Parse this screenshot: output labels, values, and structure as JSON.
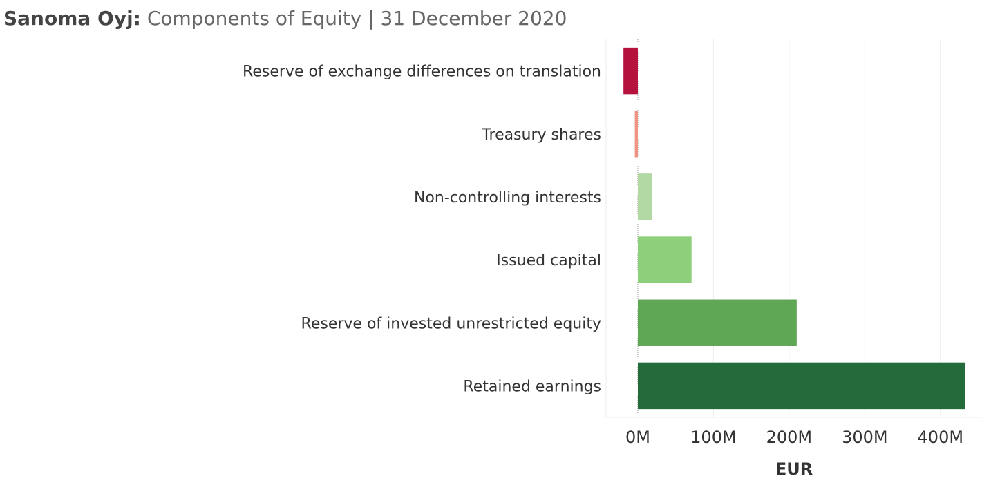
{
  "header": {
    "company": "Sanoma Oyj:",
    "subtitle": "Components of Equity |  31 December 2020"
  },
  "chart_data": {
    "type": "bar",
    "orientation": "horizontal",
    "categories": [
      "Reserve of exchange differences on translation",
      "Treasury shares",
      "Non-controlling interests",
      "Issued capital",
      "Reserve of invested unrestricted equity",
      "Retained earnings"
    ],
    "values": [
      -19,
      -4,
      19,
      71,
      210,
      433
    ],
    "colors": [
      "#b5123e",
      "#f09384",
      "#b2d8a4",
      "#8ecf7c",
      "#5fa655",
      "#246b3c"
    ],
    "xlabel": "EUR",
    "ylabel": "",
    "xlim": [
      -42,
      455
    ],
    "xticks": [
      0,
      100,
      200,
      300,
      400
    ],
    "xtick_labels": [
      "0M",
      "100M",
      "200M",
      "300M",
      "400M"
    ],
    "grid": true,
    "legend": "none"
  }
}
